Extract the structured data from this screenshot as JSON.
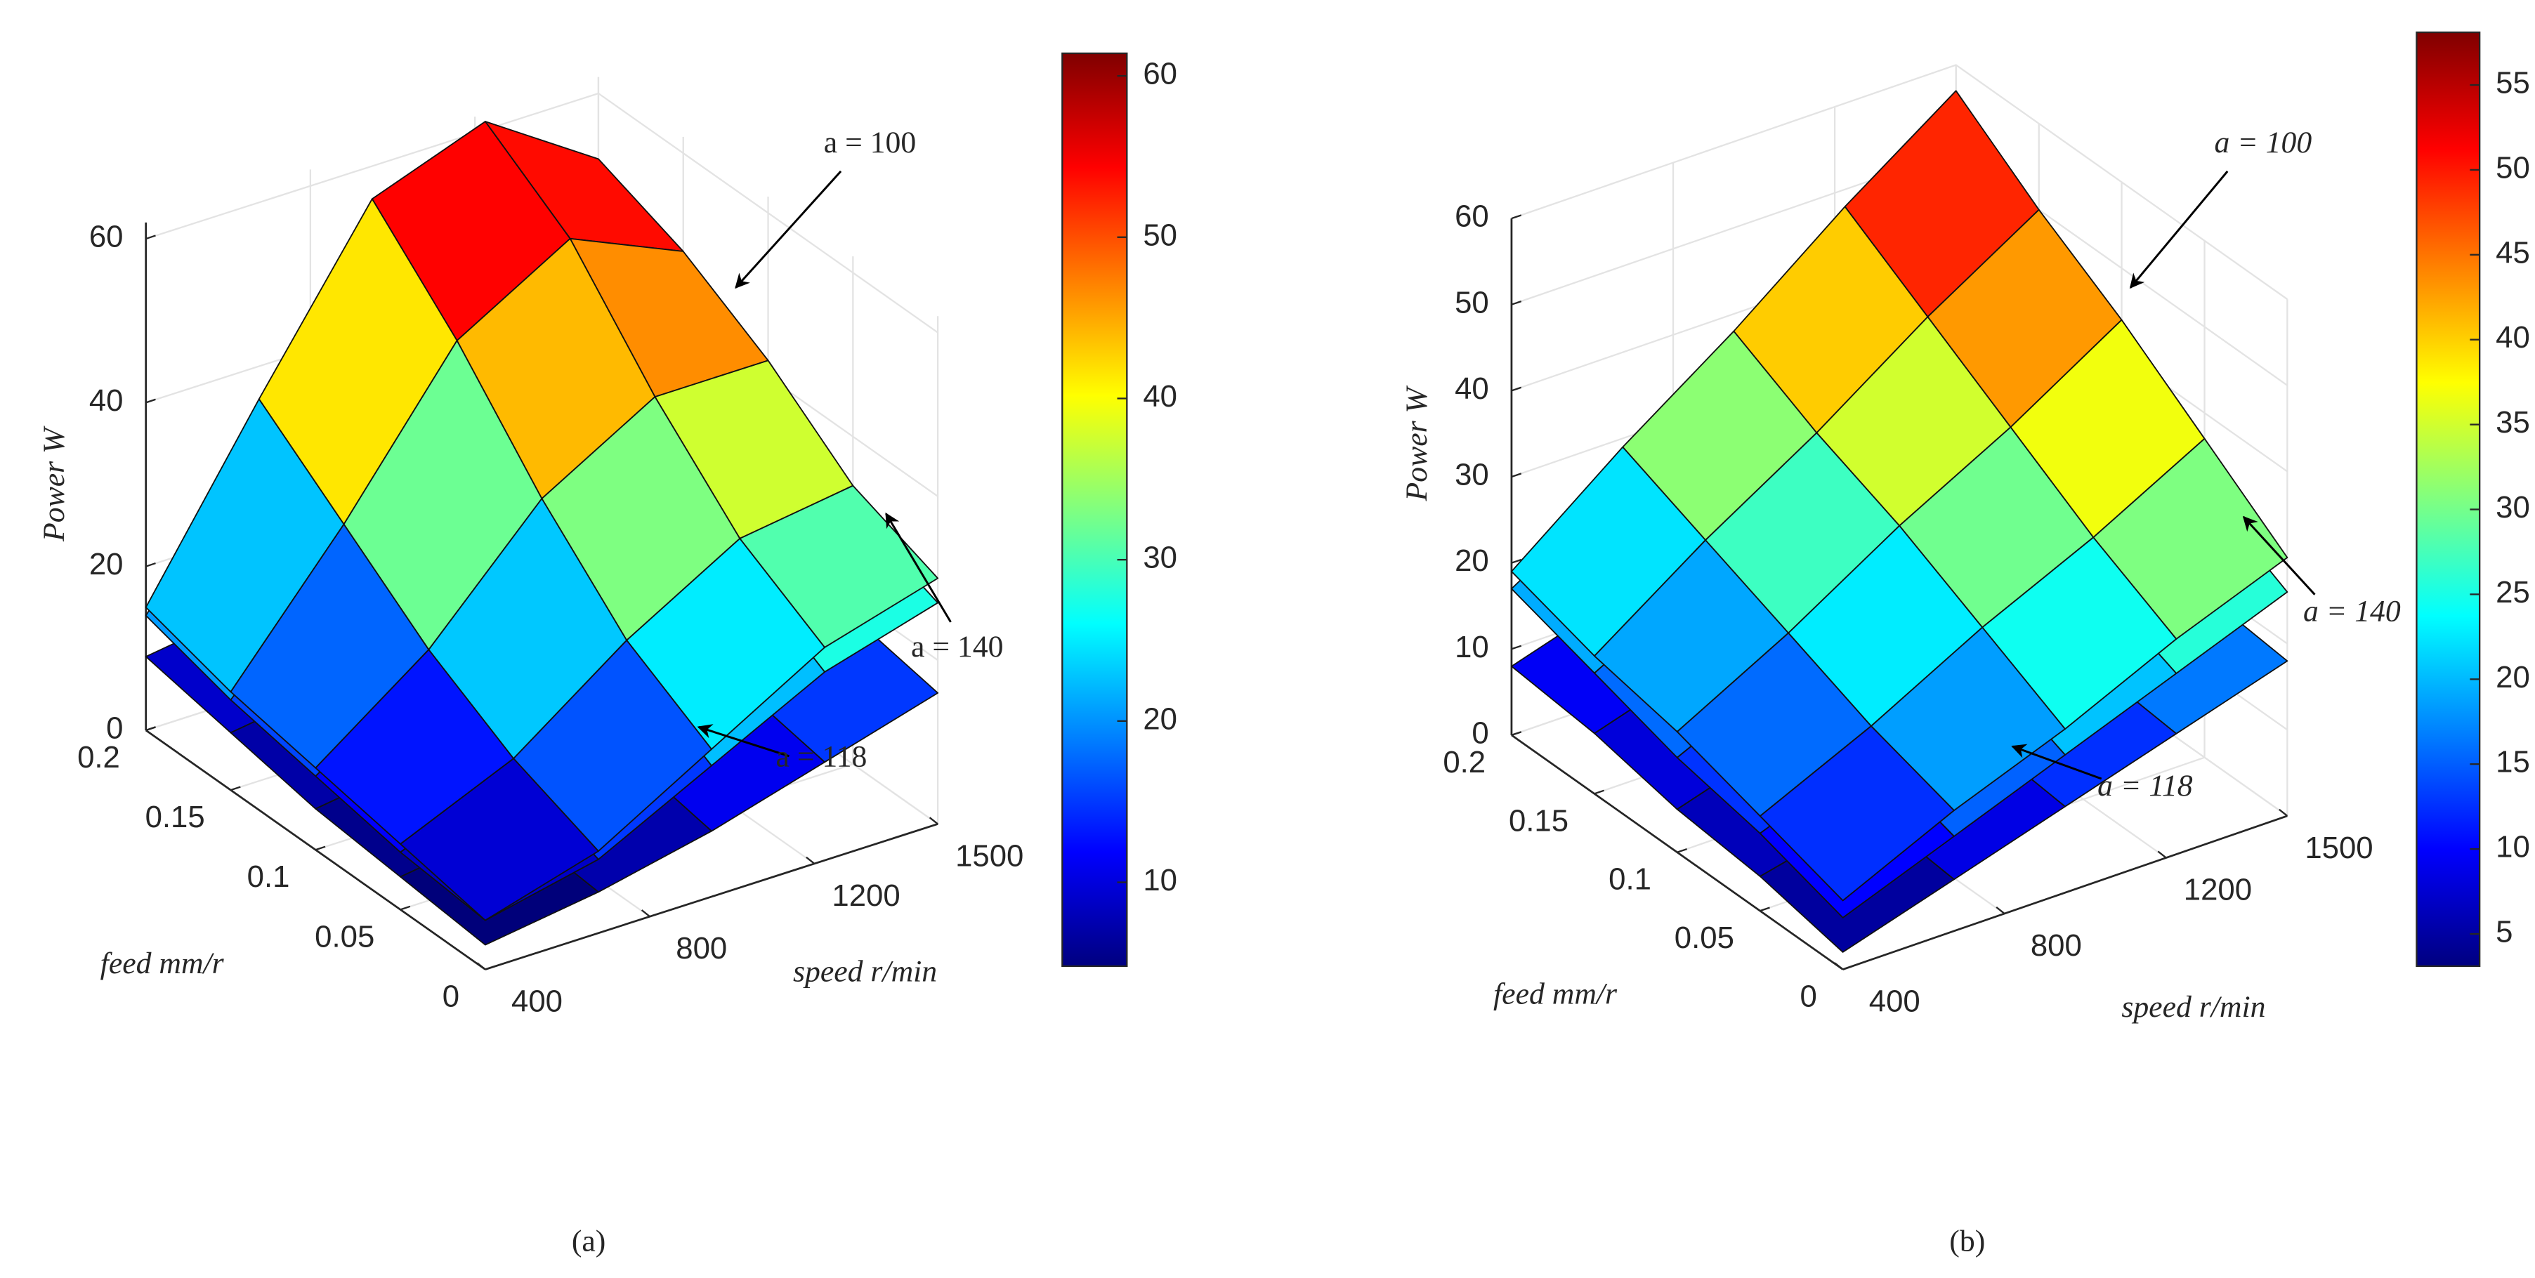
{
  "chart_data": [
    {
      "type": "surface",
      "label": "(a)",
      "colormap": "jet",
      "grid": true,
      "xlabel": "speed r/min",
      "ylabel": "feed mm/r",
      "zlabel": "Power W",
      "xlim": [
        400,
        1500
      ],
      "ylim": [
        0,
        0.2
      ],
      "zlim": [
        0,
        62
      ],
      "xticks": [
        400,
        800,
        1200,
        1500
      ],
      "yticks": [
        0,
        0.05,
        0.1,
        0.15,
        0.2
      ],
      "zticks": [
        0,
        20,
        40,
        60
      ],
      "clim": [
        4.8,
        61.4
      ],
      "cticks": [
        10,
        20,
        30,
        40,
        50,
        60
      ],
      "x": [
        400,
        675,
        950,
        1225,
        1500
      ],
      "y": [
        0,
        0.05,
        0.1,
        0.15,
        0.2
      ],
      "series": [
        {
          "z": [
            [
              6,
              10,
              18,
              26,
              30
            ],
            [
              8,
              14,
              24,
              32,
              34
            ],
            [
              10,
              20,
              34,
              42,
              42
            ],
            [
              12,
              28,
              46,
              54,
              48
            ],
            [
              15,
              36,
              56,
              61,
              52
            ]
          ]
        },
        {
          "z": [
            [
              6,
              9,
              16,
              23,
              27
            ],
            [
              7,
              13,
              22,
              29,
              31
            ],
            [
              9,
              18,
              31,
              38,
              39
            ],
            [
              11,
              25,
              41,
              49,
              44
            ],
            [
              14,
              32,
              50,
              55,
              47
            ]
          ]
        },
        {
          "z": [
            [
              3,
              5,
              8,
              12,
              16
            ],
            [
              4,
              6,
              10,
              14,
              18
            ],
            [
              5,
              7,
              11,
              16,
              19
            ],
            [
              7,
              9,
              13,
              17,
              20
            ],
            [
              9,
              11,
              14,
              18,
              22
            ]
          ]
        }
      ],
      "annotations": [
        {
          "text": "a = 100"
        },
        {
          "text": "a = 140"
        },
        {
          "text": "a = 118"
        }
      ]
    },
    {
      "type": "surface",
      "label": "(b)",
      "colormap": "jet",
      "grid": true,
      "xlabel": "speed r/min",
      "ylabel": "feed mm/r",
      "zlabel": "Power W",
      "xlim": [
        400,
        1500
      ],
      "ylim": [
        0,
        0.2
      ],
      "zlim": [
        0,
        60
      ],
      "xticks": [
        400,
        800,
        1200,
        1500
      ],
      "yticks": [
        0,
        0.05,
        0.1,
        0.15,
        0.2
      ],
      "zticks": [
        0,
        10,
        20,
        30,
        40,
        50,
        60
      ],
      "clim": [
        3.1,
        58.1
      ],
      "cticks": [
        5,
        10,
        15,
        20,
        25,
        30,
        35,
        40,
        45,
        50,
        55
      ],
      "x": [
        400,
        675,
        950,
        1225,
        1500
      ],
      "y": [
        0,
        0.05,
        0.1,
        0.15,
        0.2
      ],
      "series": [
        {
          "z": [
            [
              8,
              14,
              19,
              25,
              30
            ],
            [
              11,
              17,
              24,
              30,
              37
            ],
            [
              14,
              21,
              29,
              36,
              44
            ],
            [
              16,
              25,
              33,
              42,
              50
            ],
            [
              19,
              29,
              38,
              48,
              57
            ]
          ]
        },
        {
          "z": [
            [
              6,
              11,
              16,
              21,
              26
            ],
            [
              9,
              14,
              20,
              25,
              31
            ],
            [
              11,
              17,
              24,
              30,
              36
            ],
            [
              14,
              21,
              28,
              35,
              42
            ],
            [
              17,
              25,
              33,
              40,
              47
            ]
          ]
        },
        {
          "z": [
            [
              2,
              6,
              10,
              14,
              18
            ],
            [
              4,
              7,
              11,
              15,
              19
            ],
            [
              5,
              9,
              13,
              16,
              20
            ],
            [
              7,
              11,
              15,
              18,
              21
            ],
            [
              8,
              12,
              16,
              19,
              22
            ]
          ]
        }
      ],
      "annotations": [
        {
          "text": "a = 100"
        },
        {
          "text": "a = 140"
        },
        {
          "text": "a = 118"
        }
      ]
    }
  ]
}
